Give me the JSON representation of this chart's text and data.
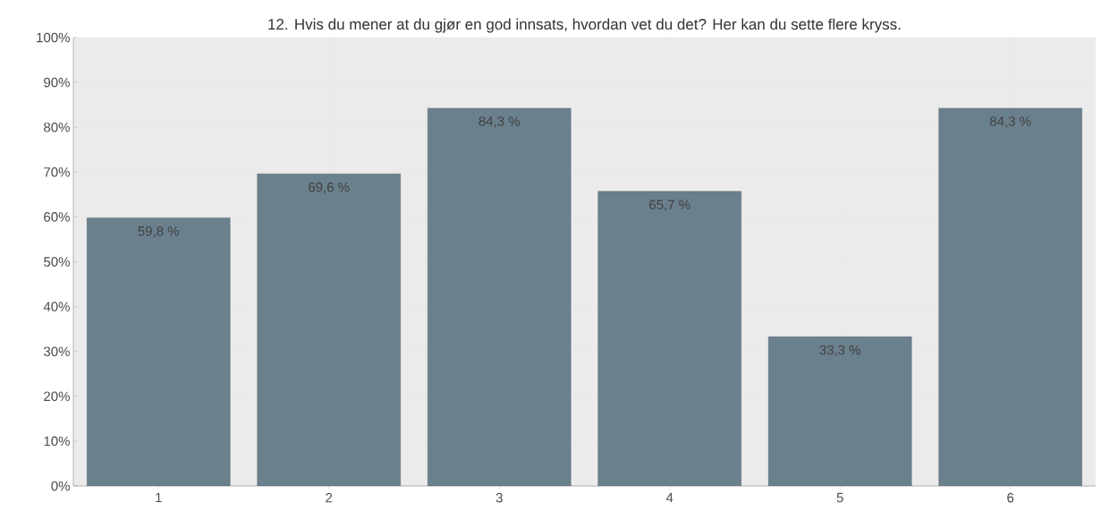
{
  "chart_data": {
    "type": "bar",
    "title": "12. Hvis du mener at du gjør en god innsats, hvordan vet du det? Her kan du sette flere kryss.",
    "categories": [
      "1",
      "2",
      "3",
      "4",
      "5",
      "6"
    ],
    "values": [
      59.8,
      69.6,
      84.3,
      65.7,
      33.3,
      84.3
    ],
    "value_labels": [
      "59,8 %",
      "69,6 %",
      "84,3 %",
      "65,7 %",
      "33,3 %",
      "84,3 %"
    ],
    "color": "#6b808d",
    "ylim": [
      0,
      100
    ],
    "yticks": [
      {
        "value": 0,
        "label": "0%"
      },
      {
        "value": 10,
        "label": "10%"
      },
      {
        "value": 20,
        "label": "20%"
      },
      {
        "value": 30,
        "label": "30%"
      },
      {
        "value": 40,
        "label": "40%"
      },
      {
        "value": 50,
        "label": "50%"
      },
      {
        "value": 60,
        "label": "60%"
      },
      {
        "value": 70,
        "label": "70%"
      },
      {
        "value": 80,
        "label": "80%"
      },
      {
        "value": 90,
        "label": "90%"
      },
      {
        "value": 100,
        "label": "100%"
      }
    ],
    "grid": true
  }
}
